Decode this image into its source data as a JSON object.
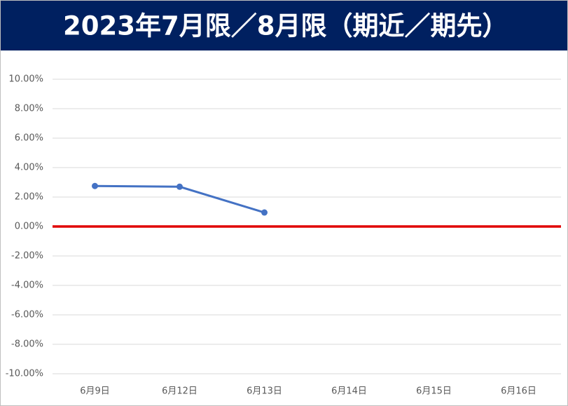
{
  "chart_data": {
    "type": "line",
    "title": "2023年7月限／8月限（期近／期先）",
    "categories": [
      "6月9日",
      "6月12日",
      "6月13日",
      "6月14日",
      "6月15日",
      "6月16日"
    ],
    "series": [
      {
        "color": "#4472c4",
        "values": [
          2.75,
          2.7,
          0.95,
          null,
          null,
          null
        ]
      }
    ],
    "ylim": [
      -10,
      10
    ],
    "yticks": [
      {
        "value": 10,
        "label": "10.00%"
      },
      {
        "value": 8,
        "label": "8.00%"
      },
      {
        "value": 6,
        "label": "6.00%"
      },
      {
        "value": 4,
        "label": "4.00%"
      },
      {
        "value": 2,
        "label": "2.00%"
      },
      {
        "value": 0,
        "label": "0.00%"
      },
      {
        "value": -2,
        "label": "-2.00%"
      },
      {
        "value": -4,
        "label": "-4.00%"
      },
      {
        "value": -6,
        "label": "-6.00%"
      },
      {
        "value": -8,
        "label": "-8.00%"
      },
      {
        "value": -10,
        "label": "-10.00%"
      }
    ],
    "grid": true,
    "zero_line_color": "#e00000",
    "title_background": "#002060"
  }
}
